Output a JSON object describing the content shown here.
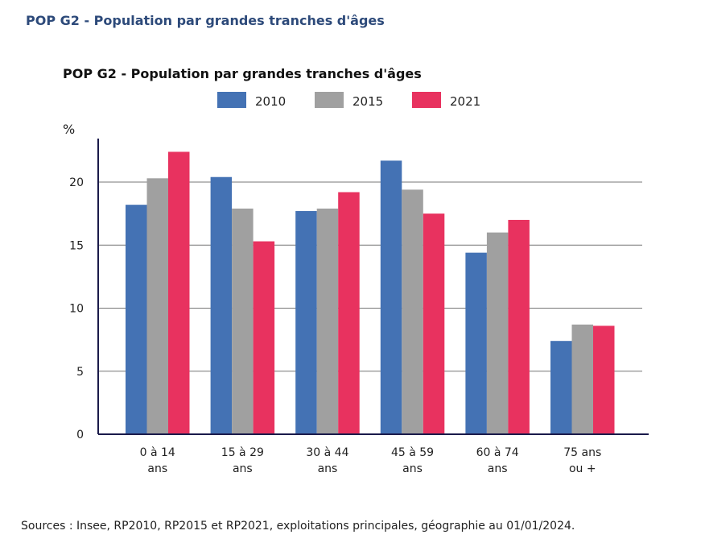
{
  "page_title": "POP G2 - Population par grandes tranches d'âges",
  "source": "Sources : Insee, RP2010, RP2015 et RP2021, exploitations principales, géographie au 01/01/2024.",
  "chart_data": {
    "type": "bar",
    "title": "POP G2 - Population par grandes tranches d'âges",
    "ylabel": "%",
    "ylim": [
      0,
      23.5
    ],
    "yticks": [
      "0",
      "5",
      "10",
      "15",
      "20"
    ],
    "grid": true,
    "legend": "top",
    "categories": [
      [
        "0 à 14",
        "ans"
      ],
      [
        "15 à 29",
        "ans"
      ],
      [
        "30 à 44",
        "ans"
      ],
      [
        "45 à 59",
        "ans"
      ],
      [
        "60 à 74",
        "ans"
      ],
      [
        "75 ans",
        "ou +"
      ]
    ],
    "series": [
      {
        "name": "2010",
        "color": "#4472b4",
        "values": [
          18.2,
          20.4,
          17.7,
          21.7,
          14.4,
          7.4
        ]
      },
      {
        "name": "2015",
        "color": "#a0a0a0",
        "values": [
          20.3,
          17.9,
          17.9,
          19.4,
          16.0,
          8.7
        ]
      },
      {
        "name": "2021",
        "color": "#e8325f",
        "values": [
          22.4,
          15.3,
          19.2,
          17.5,
          17.0,
          8.6
        ]
      }
    ]
  }
}
